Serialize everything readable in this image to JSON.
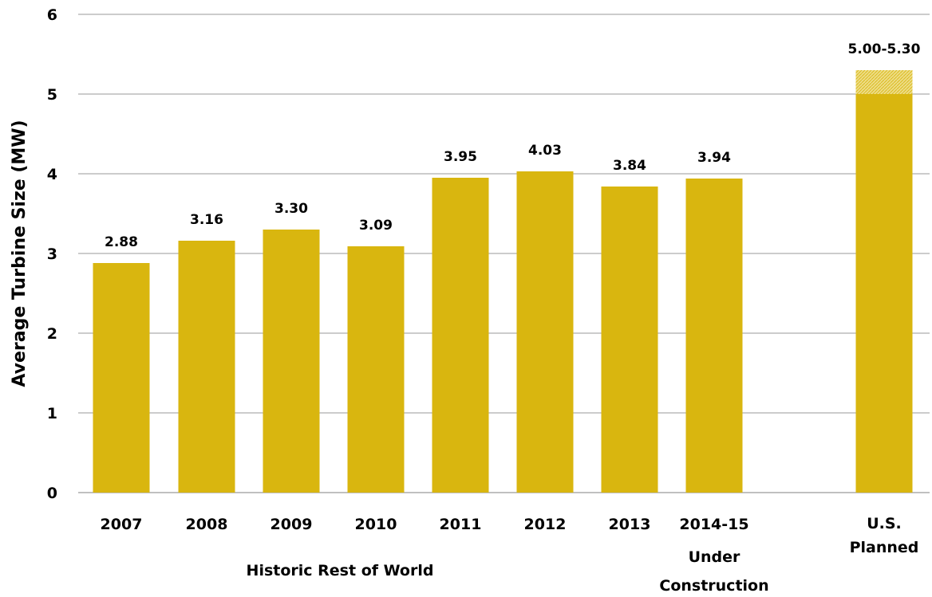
{
  "chart_data": {
    "type": "bar",
    "title": "",
    "xlabel": "",
    "ylabel": "Average Turbine Size (MW)",
    "ylim": [
      0,
      6
    ],
    "yticks": [
      "0",
      "1",
      "2",
      "3",
      "4",
      "5",
      "6"
    ],
    "grid": true,
    "legend": "none",
    "colors": {
      "bar": "#D9B60F",
      "range_extension": "#EDDC85"
    },
    "categories": [
      "2007",
      "2008",
      "2009",
      "2010",
      "2011",
      "2012",
      "2013",
      "2014-15",
      "U.S. Planned"
    ],
    "values": [
      2.88,
      3.16,
      3.3,
      3.09,
      3.95,
      4.03,
      3.84,
      3.94,
      5.0
    ],
    "range_upper": [
      null,
      null,
      null,
      null,
      null,
      null,
      null,
      null,
      5.3
    ],
    "data_labels": [
      "2.88",
      "3.16",
      "3.30",
      "3.09",
      "3.95",
      "4.03",
      "3.84",
      "3.94",
      "5.00-5.30"
    ],
    "group_labels": [
      "Historic Rest of World",
      "Under Construction"
    ]
  }
}
